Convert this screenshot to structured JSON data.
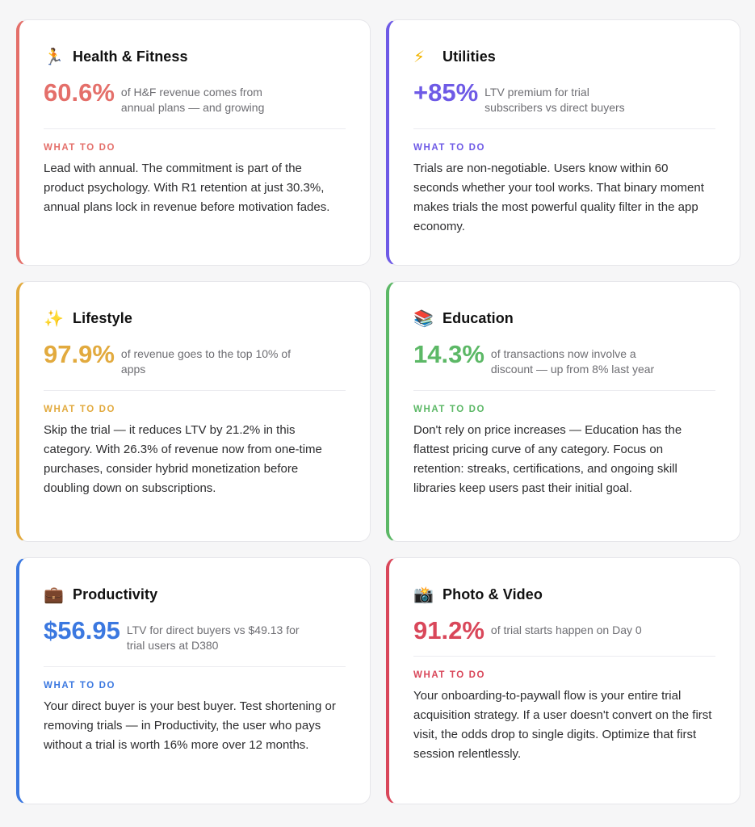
{
  "cards": [
    {
      "emoji": "🏃",
      "title": "Health & Fitness",
      "stat": "60.6%",
      "stat_desc": "of H&F revenue comes from annual plans — and growing",
      "label": "WHAT TO DO",
      "body": "Lead with annual. The commitment is part of the product psychology. With R1 retention at just 30.3%, annual plans lock in revenue before motivation fades.",
      "accent": "#e46f6a"
    },
    {
      "emoji": "⚡",
      "title": "Utilities",
      "stat": "+85%",
      "stat_desc": "LTV premium for trial subscribers vs direct buyers",
      "label": "WHAT TO DO",
      "body": "Trials are non-negotiable. Users know within 60 seconds whether your tool works. That binary moment makes trials the most powerful quality filter in the app economy.",
      "accent": "#6e5ae6"
    },
    {
      "emoji": "✨",
      "title": "Lifestyle",
      "stat": "97.9%",
      "stat_desc": "of revenue goes to the top 10% of apps",
      "label": "WHAT TO DO",
      "body": "Skip the trial — it reduces LTV by 21.2% in this category. With 26.3% of revenue now from one-time purchases, consider hybrid monetization before doubling down on subscriptions.",
      "accent": "#e2aa3e"
    },
    {
      "emoji": "📚",
      "title": "Education",
      "stat": "14.3%",
      "stat_desc": "of transactions now involve a discount — up from 8% last year",
      "label": "WHAT TO DO",
      "body": "Don't rely on price increases — Education has the flattest pricing curve of any category. Focus on retention: streaks, certifications, and ongoing skill libraries keep users past their initial goal.",
      "accent": "#5cb866"
    },
    {
      "emoji": "💼",
      "title": "Productivity",
      "stat": "$56.95",
      "stat_desc": "LTV for direct buyers vs $49.13 for trial users at D380",
      "label": "WHAT TO DO",
      "body": "Your direct buyer is your best buyer. Test shortening or removing trials — in Productivity, the user who pays without a trial is worth 16% more over 12 months.",
      "accent": "#3b78e0"
    },
    {
      "emoji": "📸",
      "title": "Photo & Video",
      "stat": "91.2%",
      "stat_desc": "of trial starts happen on Day 0",
      "label": "WHAT TO DO",
      "body": "Your onboarding-to-paywall flow is your entire trial acquisition strategy. If a user doesn't convert on the first visit, the odds drop to single digits. Optimize that first session relentlessly.",
      "accent": "#d9475a"
    }
  ]
}
